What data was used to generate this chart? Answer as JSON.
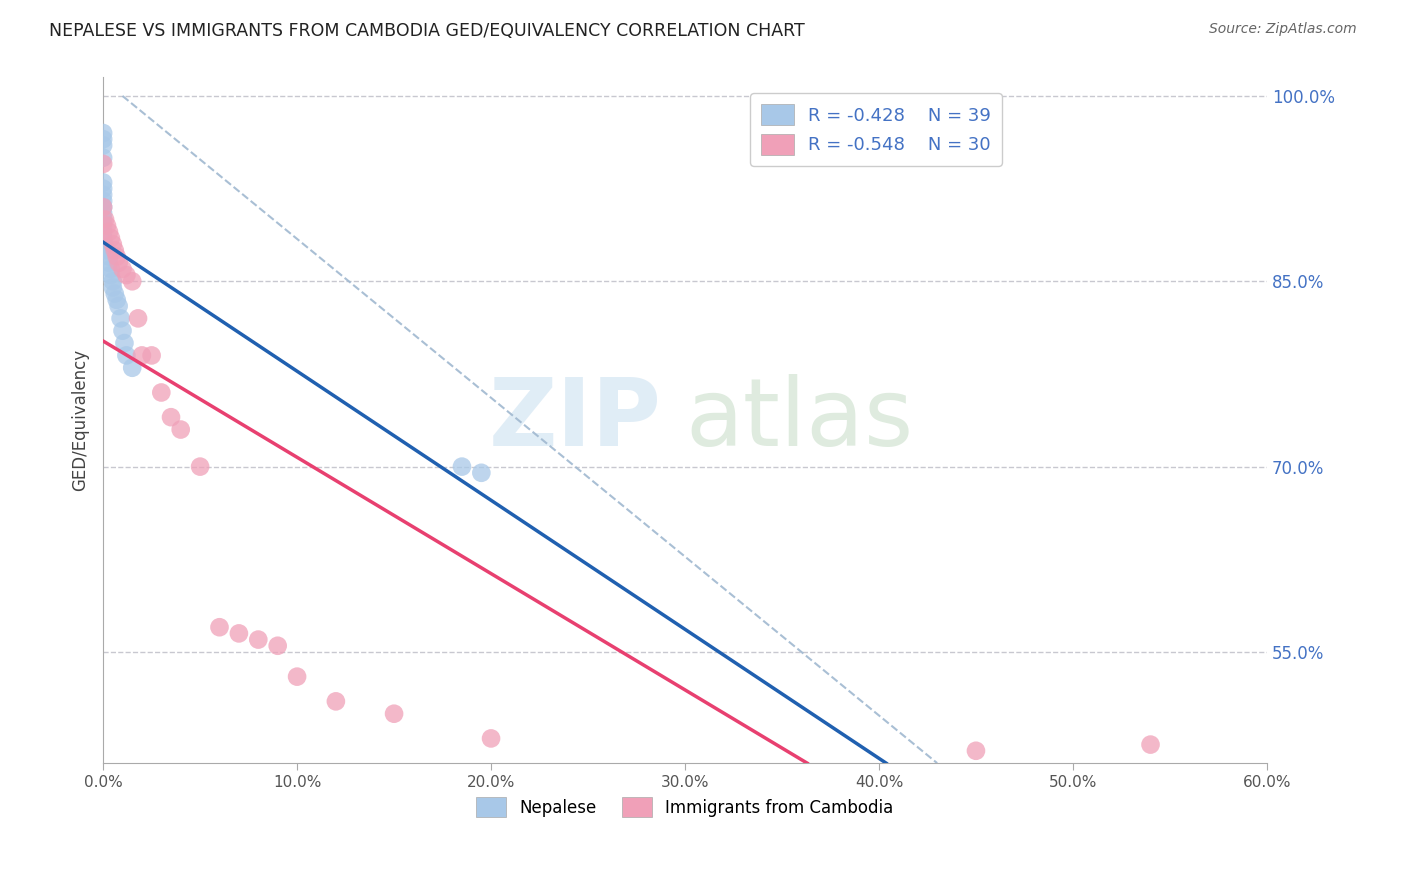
{
  "title": "NEPALESE VS IMMIGRANTS FROM CAMBODIA GED/EQUIVALENCY CORRELATION CHART",
  "source": "Source: ZipAtlas.com",
  "ylabel": "GED/Equivalency",
  "legend_blue_label": "Nepalese",
  "legend_pink_label": "Immigrants from Cambodia",
  "blue_color": "#a8c8e8",
  "pink_color": "#f0a0b8",
  "blue_line_color": "#2060b0",
  "pink_line_color": "#e84070",
  "diagonal_color": "#a0b8d0",
  "background_color": "#ffffff",
  "grid_color": "#c8c8d0",
  "nepalese_x": [
    0.0,
    0.0,
    0.0,
    0.0,
    0.0,
    0.0,
    0.0,
    0.0,
    0.0,
    0.0,
    0.0,
    0.0,
    0.0,
    0.0,
    0.0,
    0.0,
    0.0,
    0.0,
    0.0,
    0.0,
    0.001,
    0.001,
    0.002,
    0.003,
    0.003,
    0.004,
    0.004,
    0.005,
    0.005,
    0.006,
    0.007,
    0.008,
    0.009,
    0.01,
    0.011,
    0.012,
    0.015,
    0.185,
    0.195
  ],
  "nepalese_y": [
    0.97,
    0.965,
    0.96,
    0.95,
    0.93,
    0.925,
    0.92,
    0.915,
    0.91,
    0.905,
    0.9,
    0.895,
    0.89,
    0.885,
    0.884,
    0.882,
    0.881,
    0.88,
    0.879,
    0.878,
    0.877,
    0.876,
    0.875,
    0.87,
    0.865,
    0.86,
    0.855,
    0.85,
    0.845,
    0.84,
    0.835,
    0.83,
    0.82,
    0.81,
    0.8,
    0.79,
    0.78,
    0.7,
    0.695
  ],
  "cambodia_x": [
    0.0,
    0.0,
    0.001,
    0.002,
    0.003,
    0.004,
    0.005,
    0.006,
    0.007,
    0.008,
    0.01,
    0.012,
    0.015,
    0.018,
    0.02,
    0.025,
    0.03,
    0.035,
    0.04,
    0.05,
    0.06,
    0.07,
    0.08,
    0.09,
    0.1,
    0.12,
    0.15,
    0.2,
    0.45,
    0.54
  ],
  "cambodia_y": [
    0.945,
    0.91,
    0.9,
    0.895,
    0.89,
    0.885,
    0.88,
    0.875,
    0.87,
    0.865,
    0.86,
    0.855,
    0.85,
    0.82,
    0.79,
    0.79,
    0.76,
    0.74,
    0.73,
    0.7,
    0.57,
    0.565,
    0.56,
    0.555,
    0.53,
    0.51,
    0.5,
    0.48,
    0.47,
    0.475
  ],
  "xmin": 0.0,
  "xmax": 0.6,
  "ymin": 0.46,
  "ymax": 1.015,
  "y_ticks_right": [
    1.0,
    0.85,
    0.7,
    0.55
  ],
  "y_labels_right": [
    "100.0%",
    "85.0%",
    "70.0%",
    "55.0%"
  ],
  "x_ticks": [
    0.0,
    0.1,
    0.2,
    0.3,
    0.4,
    0.5,
    0.6
  ],
  "x_labels": [
    "0.0%",
    "10.0%",
    "20.0%",
    "30.0%",
    "40.0%",
    "50.0%",
    "60.0%"
  ]
}
